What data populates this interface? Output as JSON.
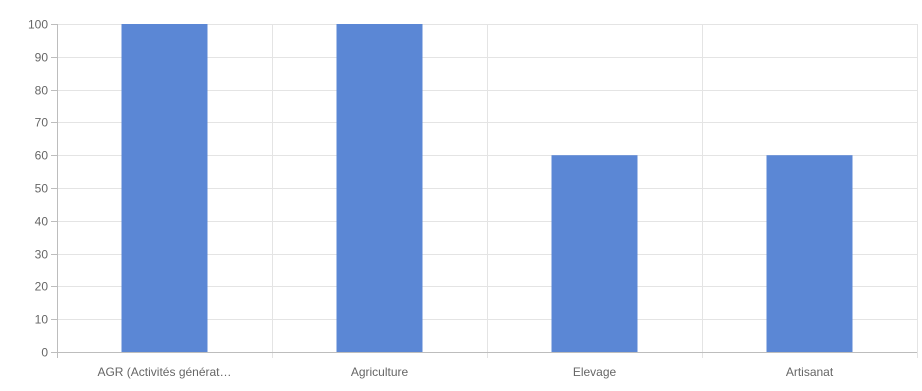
{
  "chart_data": {
    "type": "bar",
    "title": "",
    "xlabel": "",
    "ylabel": "",
    "categories": [
      "AGR (Activités générat…",
      "Agriculture",
      "Elevage",
      "Artisanat"
    ],
    "values": [
      100,
      100,
      60,
      60
    ],
    "ylim": [
      0,
      100
    ],
    "yticks": [
      "0",
      "10",
      "20",
      "30",
      "40",
      "50",
      "60",
      "70",
      "80",
      "90",
      "100"
    ],
    "grid": true,
    "legend": "none",
    "colors": {
      "bar": "#5b87d5",
      "grid": "#e4e4e4",
      "axis": "#bdbdbd",
      "text": "#666666"
    }
  }
}
